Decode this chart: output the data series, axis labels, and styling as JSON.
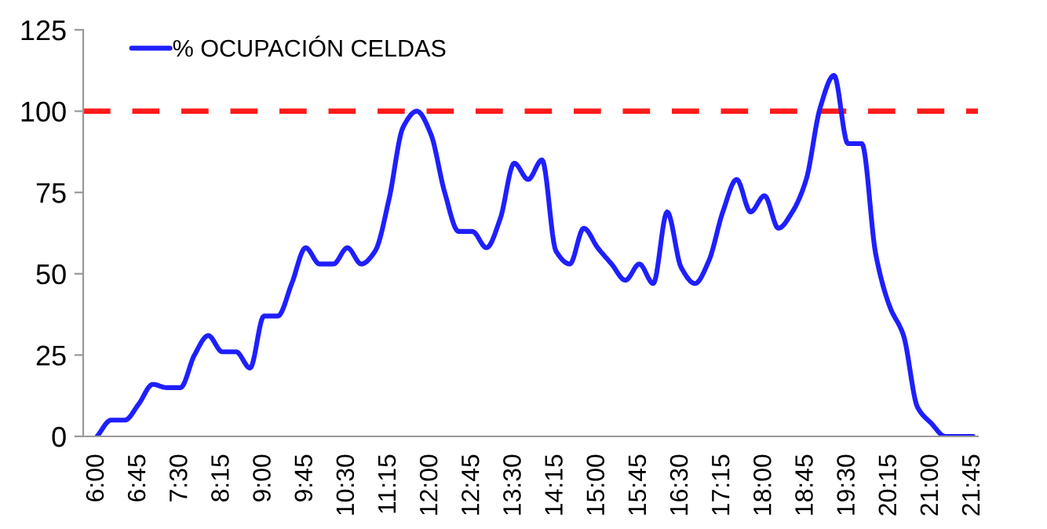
{
  "chart_data": {
    "type": "line",
    "categories": [
      "6:00",
      null,
      null,
      "6:45",
      null,
      null,
      "7:30",
      null,
      null,
      "8:15",
      null,
      null,
      "9:00",
      null,
      null,
      "9:45",
      null,
      null,
      "10:30",
      null,
      null,
      "11:15",
      null,
      null,
      "12:00",
      null,
      null,
      "12:45",
      null,
      null,
      "13:30",
      null,
      null,
      "14:15",
      null,
      null,
      "15:00",
      null,
      null,
      "15:45",
      null,
      null,
      "16:30",
      null,
      null,
      "17:15",
      null,
      null,
      "18:00",
      null,
      null,
      "18:45",
      null,
      null,
      "19:30",
      null,
      null,
      "20:15",
      null,
      null,
      "21:00",
      null,
      null,
      "21:45"
    ],
    "series": [
      {
        "name": "% OCUPACIÓN CELDAS",
        "color": "#1f1fff",
        "values": [
          0,
          5,
          5,
          10,
          16,
          15,
          15,
          25,
          31,
          26,
          26,
          21,
          37,
          37,
          47,
          58,
          53,
          53,
          58,
          53,
          57,
          73,
          95,
          100,
          93,
          75,
          63,
          63,
          58,
          67,
          84,
          79,
          85,
          57,
          53,
          64,
          58,
          53,
          48,
          53,
          47,
          69,
          52,
          47,
          54,
          69,
          79,
          69,
          74,
          64,
          69,
          79,
          101,
          111,
          90,
          90,
          56,
          40,
          31,
          9,
          4,
          0,
          0,
          0
        ]
      }
    ],
    "ylim": [
      0,
      125
    ],
    "yticks": [
      0,
      25,
      50,
      75,
      100,
      125
    ],
    "ref_lines": [
      {
        "axis": "y",
        "value": 100,
        "color": "#ff1a1a",
        "line_style": "dashed"
      }
    ],
    "legend": "top left",
    "grid": false,
    "marker": "none",
    "line_style": "solid"
  }
}
